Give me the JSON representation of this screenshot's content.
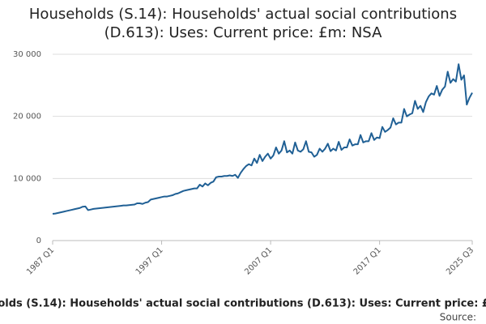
{
  "chart_data": {
    "type": "line",
    "title": "Households (S.14): Households' actual social contributions (D.613): Uses: Current price: £m: NSA",
    "source": "Source:",
    "categories": [
      "1987 Q1",
      null,
      null,
      null,
      null,
      null,
      null,
      null,
      null,
      null,
      null,
      null,
      null,
      null,
      null,
      null,
      null,
      null,
      null,
      null,
      null,
      null,
      null,
      null,
      null,
      null,
      null,
      null,
      null,
      null,
      null,
      null,
      null,
      null,
      null,
      null,
      null,
      null,
      null,
      null,
      "1997 Q1",
      null,
      null,
      null,
      null,
      null,
      null,
      null,
      null,
      null,
      null,
      null,
      null,
      null,
      null,
      null,
      null,
      null,
      null,
      null,
      null,
      null,
      null,
      null,
      null,
      null,
      null,
      null,
      null,
      null,
      null,
      null,
      null,
      null,
      null,
      null,
      null,
      null,
      null,
      null,
      "2007 Q1",
      null,
      null,
      null,
      null,
      null,
      null,
      null,
      null,
      null,
      null,
      null,
      null,
      null,
      null,
      null,
      null,
      null,
      null,
      null,
      null,
      null,
      null,
      null,
      null,
      null,
      null,
      null,
      null,
      null,
      null,
      null,
      null,
      null,
      null,
      null,
      null,
      null,
      null,
      null,
      "2017 Q1",
      null,
      null,
      null,
      null,
      null,
      null,
      null,
      null,
      null,
      null,
      null,
      null,
      null,
      null,
      null,
      null,
      null,
      null,
      null,
      null,
      null,
      null,
      null,
      null,
      null,
      null,
      null,
      null,
      null,
      null,
      null,
      null,
      null,
      "2025 Q3"
    ],
    "series": [
      {
        "name": "Households (S.14): Households' actual social contributions (D.613): Uses: Current price: £m: NSA",
        "color": "#206095",
        "values": [
          4300,
          4350,
          4450,
          4550,
          4650,
          4750,
          4850,
          4950,
          5050,
          5150,
          5250,
          5450,
          5500,
          4900,
          5000,
          5100,
          5150,
          5200,
          5250,
          5300,
          5350,
          5400,
          5450,
          5500,
          5550,
          5600,
          5650,
          5650,
          5700,
          5750,
          5800,
          6000,
          6000,
          5900,
          6100,
          6200,
          6600,
          6700,
          6800,
          6900,
          7000,
          7100,
          7100,
          7200,
          7300,
          7500,
          7600,
          7800,
          8000,
          8100,
          8200,
          8300,
          8400,
          8400,
          9000,
          8700,
          9200,
          8900,
          9300,
          9500,
          10200,
          10300,
          10300,
          10400,
          10400,
          10500,
          10400,
          10600,
          10100,
          10900,
          11500,
          12000,
          12300,
          12100,
          13200,
          12500,
          13800,
          12800,
          13500,
          14000,
          13200,
          13700,
          15000,
          14000,
          14500,
          16000,
          14200,
          14500,
          14000,
          15800,
          14500,
          14300,
          14700,
          16000,
          14300,
          14200,
          13500,
          13800,
          14800,
          14300,
          14800,
          15600,
          14400,
          14800,
          14500,
          15900,
          14600,
          15000,
          15000,
          16300,
          15300,
          15500,
          15500,
          17000,
          15800,
          16000,
          16000,
          17300,
          16200,
          16600,
          16500,
          18300,
          17500,
          17800,
          18200,
          19700,
          18700,
          19000,
          19000,
          21200,
          20000,
          20300,
          20500,
          22500,
          21200,
          21700,
          20700,
          22300,
          23200,
          23700,
          23500,
          24900,
          23300,
          24300,
          24800,
          27200,
          25400,
          26000,
          25600,
          28400,
          25900,
          26600,
          21900,
          23000,
          23800
        ]
      }
    ],
    "ylim": [
      0,
      30000
    ],
    "yticks": [
      0,
      {
        "value": 10000,
        "label": "10 000"
      },
      {
        "value": 20000,
        "label": "20 000"
      },
      {
        "value": 30000,
        "label": "30 000"
      }
    ],
    "grid": true
  }
}
